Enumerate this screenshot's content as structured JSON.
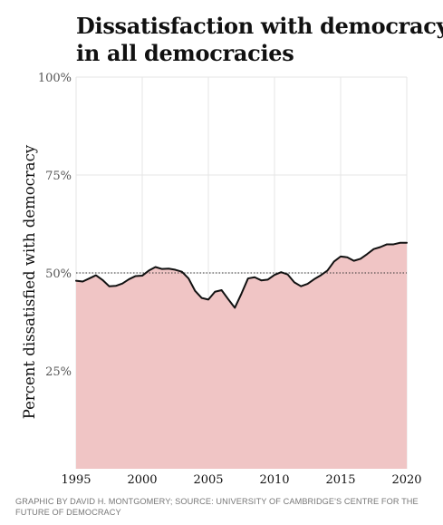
{
  "title_line1": "Dissatisfaction with democracy",
  "title_line2": "in all democracies",
  "source_text": "GRAPHIC BY DAVID H. MONTGOMERY; SOURCE: UNIVERSITY OF CAMBRIDGE'S CENTRE FOR THE FUTURE OF DEMOCRACY",
  "colors": {
    "area": "#f0c5c5",
    "line": "#111111",
    "grid": "#e6e6e6",
    "reference": "#333333"
  },
  "chart_data": {
    "type": "area",
    "title": "Dissatisfaction with democracy in all democracies",
    "ylabel": "Percent dissatisfied with democracy",
    "xlabel": "",
    "xlim": [
      1995,
      2020
    ],
    "ylim": [
      0,
      100
    ],
    "x_ticks": [
      1995,
      2000,
      2005,
      2010,
      2015,
      2020
    ],
    "x_tick_labels": [
      "1995",
      "2000",
      "2005",
      "2010",
      "2015",
      "2020"
    ],
    "y_ticks": [
      25,
      50,
      75,
      100
    ],
    "y_tick_labels": [
      "25%",
      "50%",
      "75%",
      "100%"
    ],
    "reference_line": {
      "y": 50,
      "style": "dotted"
    },
    "grid": true,
    "x": [
      1995,
      1995.5,
      1996,
      1996.5,
      1997,
      1997.5,
      1998,
      1998.5,
      1999,
      1999.5,
      2000,
      2000.5,
      2001,
      2001.5,
      2002,
      2002.5,
      2003,
      2003.5,
      2004,
      2004.5,
      2005,
      2005.5,
      2006,
      2006.5,
      2007,
      2007.5,
      2008,
      2008.5,
      2009,
      2009.5,
      2010,
      2010.5,
      2011,
      2011.5,
      2012,
      2012.5,
      2013,
      2013.5,
      2014,
      2014.5,
      2015,
      2015.5,
      2016,
      2016.5,
      2017,
      2017.5,
      2018,
      2018.5,
      2019,
      2019.5,
      2020
    ],
    "y": [
      48,
      47.8,
      48.6,
      49.4,
      48.2,
      46.6,
      46.7,
      47.3,
      48.4,
      49.2,
      49.3,
      50.6,
      51.5,
      51,
      51.1,
      50.8,
      50.3,
      48.6,
      45.4,
      43.6,
      43.2,
      45.2,
      45.6,
      43.3,
      41.1,
      44.7,
      48.6,
      48.9,
      48.1,
      48.3,
      49.5,
      50.2,
      49.6,
      47.6,
      46.6,
      47.2,
      48.4,
      49.4,
      50.6,
      52.9,
      54.2,
      54,
      53.1,
      53.6,
      54.8,
      56.1,
      56.6,
      57.3,
      57.3,
      57.7,
      57.7
    ]
  }
}
